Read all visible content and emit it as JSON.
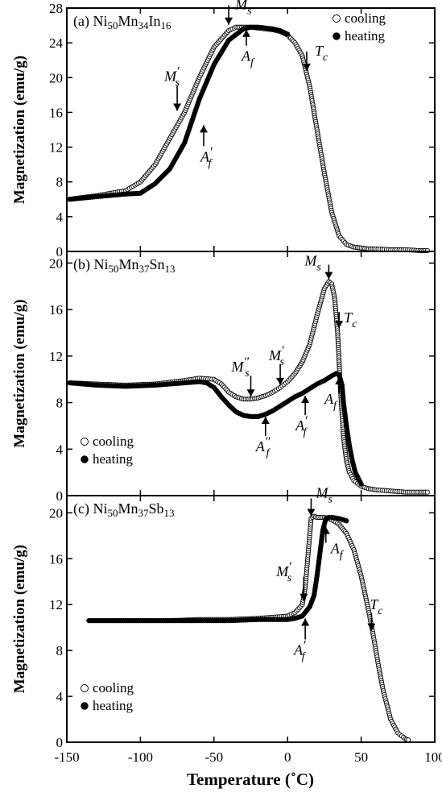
{
  "chart_data": [
    {
      "type": "line",
      "panel": "(a)",
      "title": "(a) Ni50Mn34In16",
      "xlabel": "Temperature (˚C)",
      "ylabel": "Magnetization (emu/g)",
      "xlim": [
        -150,
        100
      ],
      "ylim": [
        0,
        28
      ],
      "yticks": [
        0,
        4,
        8,
        12,
        16,
        20,
        24,
        28
      ],
      "legend_position": "top-right",
      "series": [
        {
          "name": "cooling",
          "marker": "open-circle",
          "x": [
            -148,
            -140,
            -130,
            -120,
            -110,
            -100,
            -90,
            -80,
            -70,
            -60,
            -50,
            -40,
            -35,
            -30,
            -25,
            -20,
            -15,
            -10,
            -5,
            0,
            5,
            10,
            15,
            20,
            25,
            30,
            35,
            40,
            45,
            50,
            55,
            60,
            70,
            80,
            90,
            95
          ],
          "y": [
            6.0,
            6.2,
            6.4,
            6.7,
            7.0,
            8.0,
            10.0,
            13.0,
            16.0,
            20.0,
            23.5,
            25.4,
            25.8,
            25.8,
            25.8,
            25.7,
            25.6,
            25.5,
            25.3,
            24.9,
            24.0,
            22.5,
            19.0,
            14.0,
            9.0,
            4.5,
            1.8,
            0.8,
            0.5,
            0.4,
            0.3,
            0.3,
            0.2,
            0.2,
            0.1,
            0.1
          ]
        },
        {
          "name": "heating",
          "marker": "filled-circle",
          "x": [
            -148,
            -130,
            -110,
            -100,
            -90,
            -80,
            -70,
            -60,
            -50,
            -40,
            -30,
            -25,
            -20,
            -15,
            -10,
            -5,
            0
          ],
          "y": [
            6.0,
            6.3,
            6.6,
            6.7,
            7.8,
            9.5,
            12.5,
            17.5,
            21.5,
            24.3,
            25.6,
            25.8,
            25.8,
            25.7,
            25.6,
            25.4,
            25.0
          ]
        }
      ],
      "annotations": [
        {
          "label": "M′s",
          "x": -75,
          "y": 15.9
        },
        {
          "label": "A′f",
          "x": -57,
          "y": 14.8
        },
        {
          "label": "Ms",
          "x": -40,
          "y": 25.8
        },
        {
          "label": "Af",
          "x": -28,
          "y": 25.8
        },
        {
          "label": "Tc",
          "x": 13,
          "y": 20.5
        }
      ]
    },
    {
      "type": "line",
      "panel": "(b)",
      "title": "(b) Ni50Mn37Sn13",
      "xlabel": "Temperature (˚C)",
      "ylabel": "Magnetization (emu/g)",
      "xlim": [
        -150,
        100
      ],
      "ylim": [
        0,
        21
      ],
      "yticks": [
        0,
        4,
        8,
        12,
        16,
        20
      ],
      "legend_position": "bottom-left",
      "series": [
        {
          "name": "cooling",
          "marker": "open-circle",
          "x": [
            -148,
            -130,
            -110,
            -90,
            -70,
            -60,
            -50,
            -45,
            -40,
            -35,
            -30,
            -25,
            -20,
            -15,
            -10,
            -5,
            0,
            5,
            10,
            15,
            20,
            25,
            28,
            30,
            32,
            34,
            36,
            38,
            40,
            42,
            45,
            50,
            55,
            60,
            70,
            80,
            90,
            95
          ],
          "y": [
            9.7,
            9.6,
            9.5,
            9.6,
            9.9,
            10.1,
            10.0,
            9.6,
            8.9,
            8.5,
            8.3,
            8.3,
            8.4,
            8.6,
            8.9,
            9.3,
            9.8,
            10.5,
            11.5,
            13.0,
            15.5,
            17.8,
            18.4,
            18.2,
            17.0,
            14.0,
            9.0,
            5.0,
            3.0,
            2.0,
            1.3,
            0.8,
            0.6,
            0.5,
            0.4,
            0.3,
            0.3,
            0.3
          ]
        },
        {
          "name": "heating",
          "marker": "filled-circle",
          "x": [
            -148,
            -130,
            -110,
            -90,
            -70,
            -60,
            -55,
            -50,
            -45,
            -40,
            -35,
            -30,
            -25,
            -20,
            -15,
            -10,
            -5,
            0,
            5,
            10,
            15,
            20,
            25,
            30,
            33,
            35,
            37,
            38,
            40,
            42,
            44,
            46,
            50
          ],
          "y": [
            9.7,
            9.5,
            9.4,
            9.5,
            9.7,
            9.8,
            9.7,
            9.3,
            8.5,
            7.8,
            7.2,
            6.9,
            6.8,
            6.8,
            7.0,
            7.3,
            7.7,
            8.1,
            8.5,
            8.8,
            9.2,
            9.6,
            9.9,
            10.3,
            10.5,
            10.4,
            9.5,
            8.0,
            6.0,
            4.3,
            3.0,
            2.0,
            1.0
          ]
        }
      ],
      "annotations": [
        {
          "label": "M″s",
          "x": -25,
          "y": 8.3
        },
        {
          "label": "M′s",
          "x": -5,
          "y": 9.3
        },
        {
          "label": "Ms",
          "x": 28,
          "y": 18.4
        },
        {
          "label": "Tc",
          "x": 35,
          "y": 14.2
        },
        {
          "label": "A″f",
          "x": -15,
          "y": 7.0
        },
        {
          "label": "A′f",
          "x": 12,
          "y": 8.8
        },
        {
          "label": "Af",
          "x": 35,
          "y": 10.4
        }
      ]
    },
    {
      "type": "line",
      "panel": "(c)",
      "title": "(c) Ni50Mn37Sb13",
      "xlabel": "Temperature (˚C)",
      "ylabel": "Magnetization (emu/g)",
      "xlim": [
        -150,
        100
      ],
      "ylim": [
        0,
        21.5
      ],
      "yticks": [
        0,
        4,
        8,
        12,
        16,
        20
      ],
      "legend_position": "bottom-left",
      "series": [
        {
          "name": "cooling",
          "marker": "open-circle",
          "x": [
            -135,
            -120,
            -100,
            -80,
            -60,
            -40,
            -20,
            0,
            5,
            10,
            12,
            14,
            16,
            18,
            20,
            25,
            30,
            35,
            40,
            45,
            50,
            55,
            58,
            60,
            62,
            65,
            70,
            75,
            80,
            82
          ],
          "y": [
            10.6,
            10.6,
            10.6,
            10.6,
            10.7,
            10.7,
            10.8,
            11.0,
            11.3,
            12.0,
            13.5,
            16.5,
            19.5,
            19.7,
            19.6,
            19.6,
            19.4,
            19.0,
            18.2,
            16.8,
            14.5,
            11.5,
            9.5,
            8.0,
            6.5,
            4.5,
            2.0,
            0.8,
            0.3,
            0.2
          ]
        },
        {
          "name": "heating",
          "marker": "filled-circle",
          "x": [
            -135,
            -120,
            -100,
            -80,
            -60,
            -40,
            -20,
            0,
            5,
            10,
            15,
            18,
            20,
            22,
            24,
            26,
            28,
            30,
            35,
            40
          ],
          "y": [
            10.6,
            10.6,
            10.6,
            10.6,
            10.6,
            10.6,
            10.7,
            10.7,
            10.8,
            11.0,
            11.8,
            12.8,
            14.5,
            16.5,
            18.5,
            19.5,
            19.6,
            19.6,
            19.5,
            19.3
          ]
        }
      ],
      "annotations": [
        {
          "label": "Ms",
          "x": 16,
          "y": 19.5
        },
        {
          "label": "M′s",
          "x": 11,
          "y": 12.1
        },
        {
          "label": "Af",
          "x": 26,
          "y": 19.0
        },
        {
          "label": "A′f",
          "x": 12,
          "y": 11.0
        },
        {
          "label": "Tc",
          "x": 57,
          "y": 9.5
        }
      ]
    }
  ],
  "legend": {
    "cooling": "cooling",
    "heating": "heating"
  },
  "x_ticks": [
    "-150",
    "-100",
    "-50",
    "0",
    "50",
    "100"
  ],
  "x_axis_title": "Temperature (˚C)",
  "y_axis_title": "Magnetization (emu/g)"
}
